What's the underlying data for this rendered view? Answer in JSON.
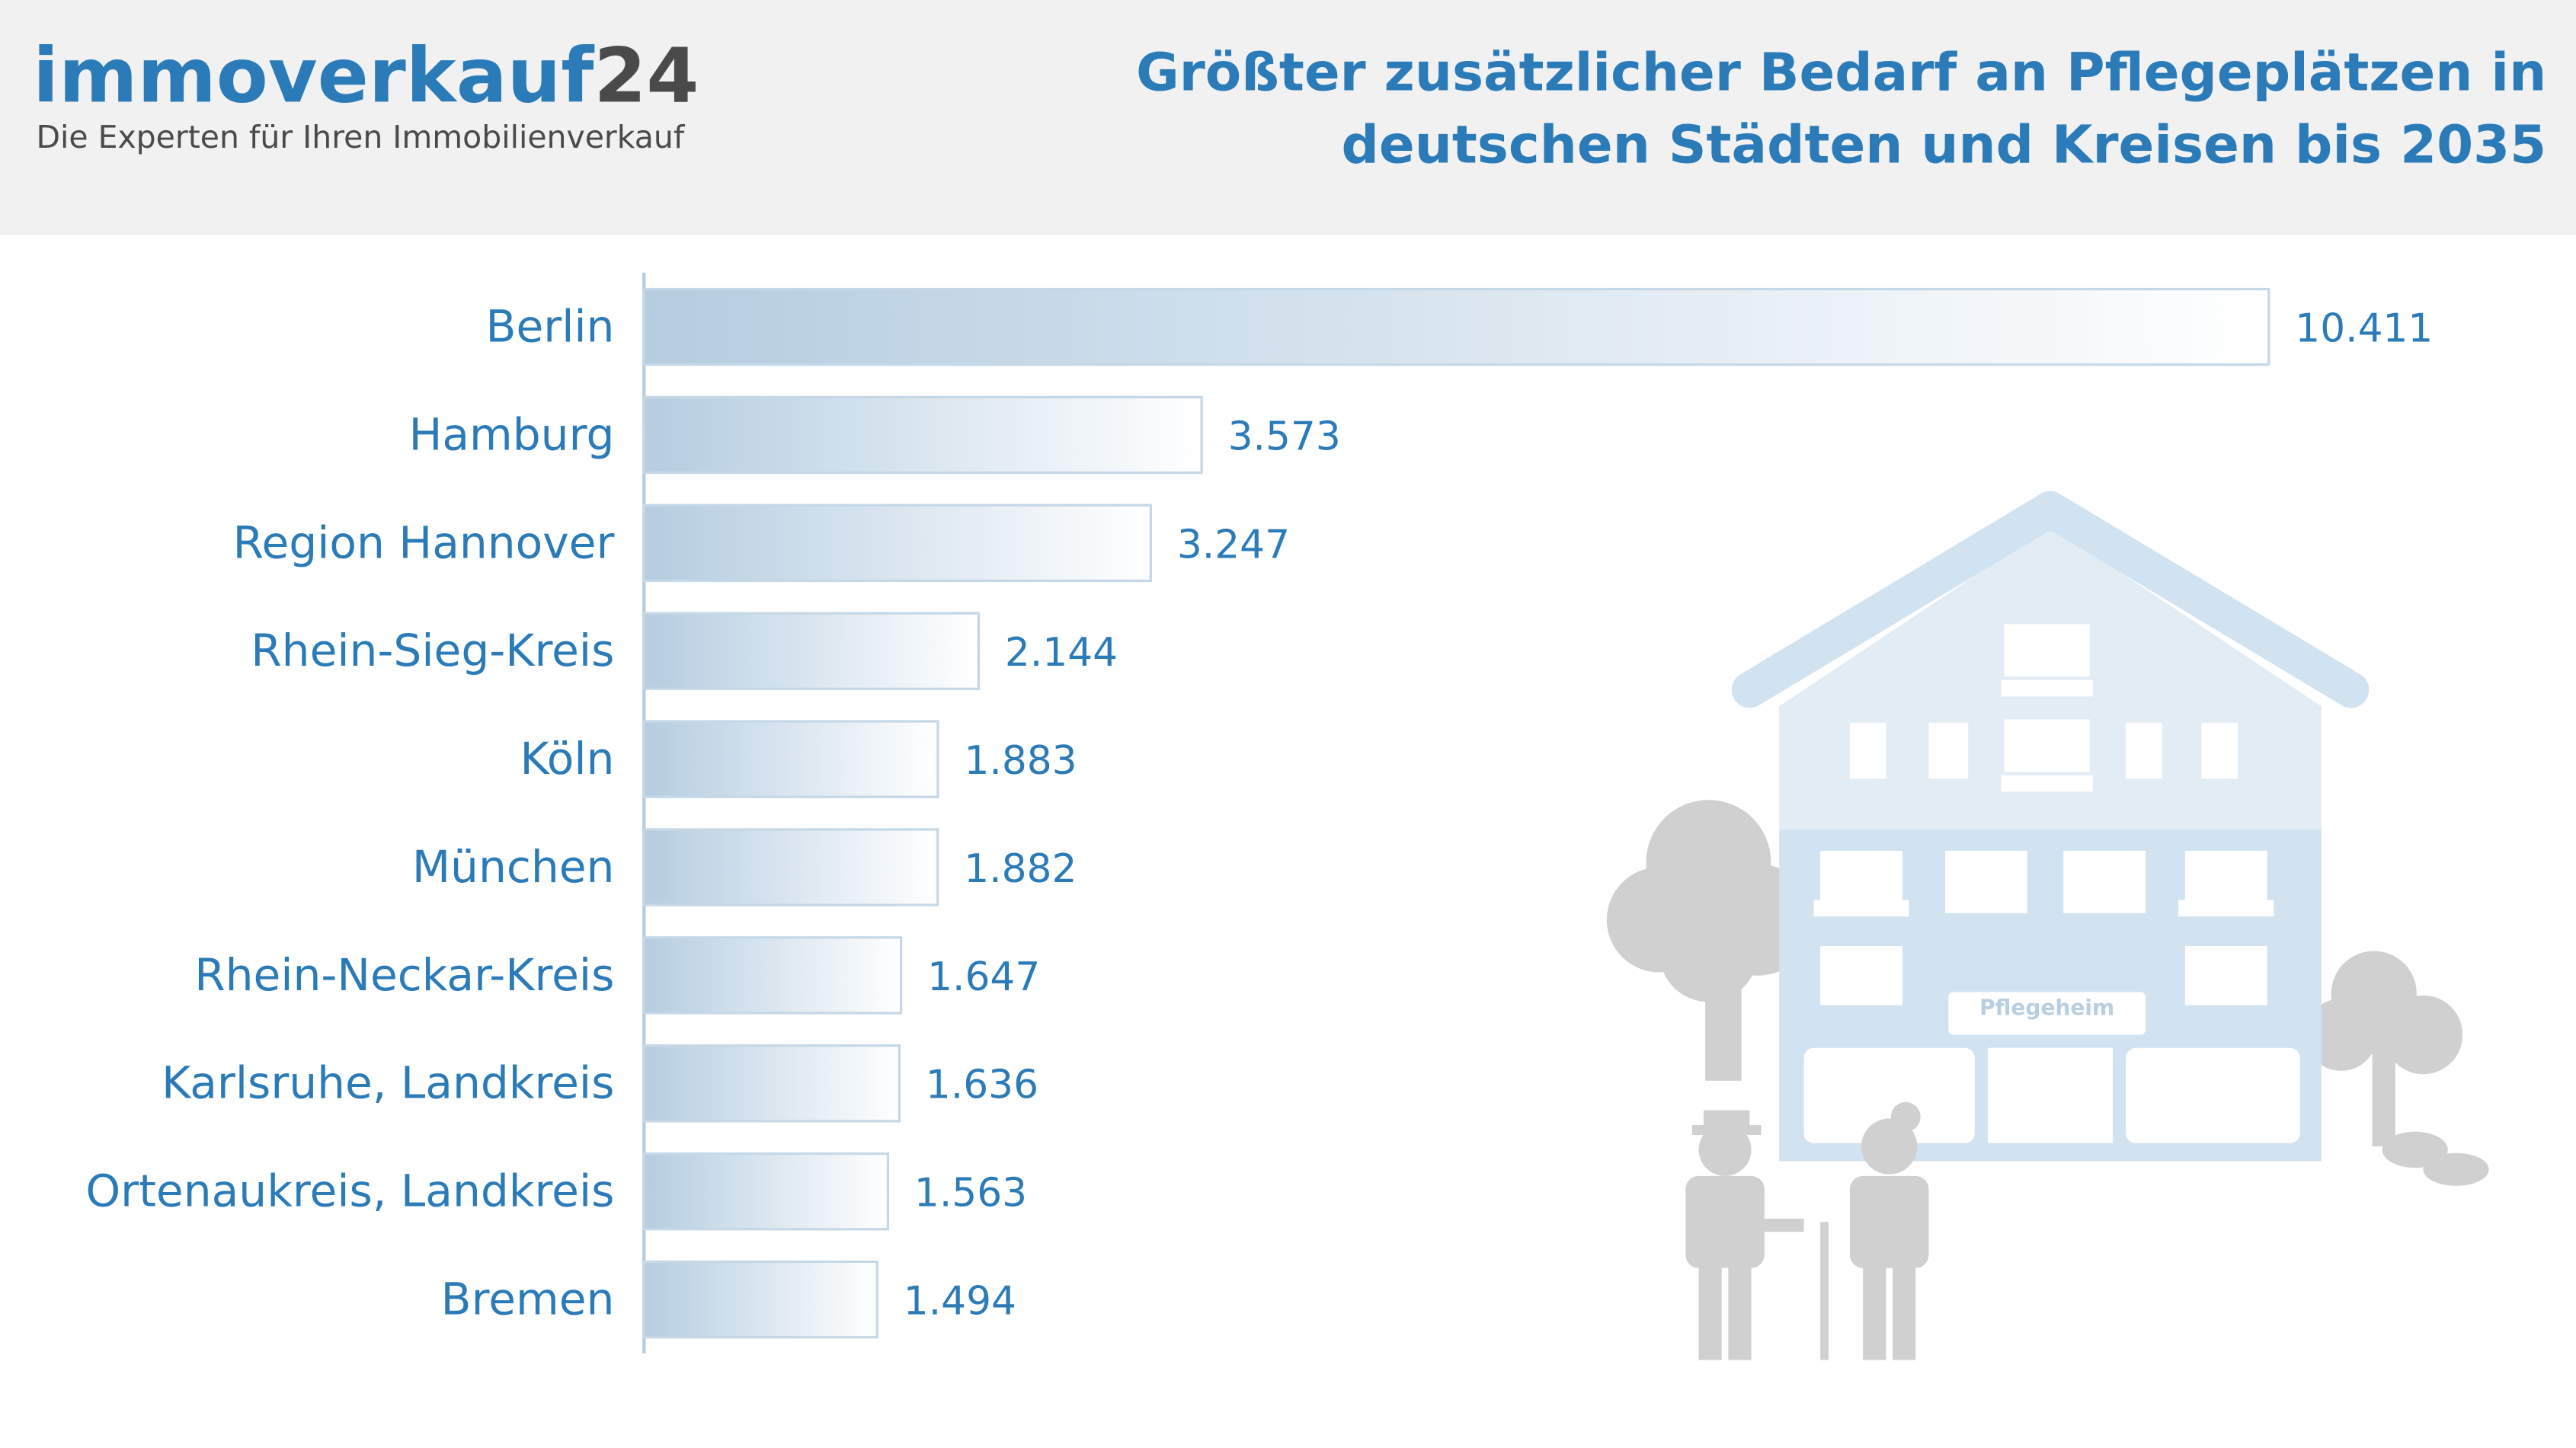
{
  "logo": {
    "brand": "immoverkauf",
    "brand_number": "24",
    "tagline": "Die Experten für Ihren Immobilienverkauf"
  },
  "illustration_label": "Pflegeheim",
  "chart_data": {
    "type": "bar",
    "orientation": "horizontal",
    "title": "Größter zusätzlicher Bedarf an Pflegeplätzen in deutschen Städten und Kreisen bis 2035",
    "categories": [
      "Berlin",
      "Hamburg",
      "Region Hannover",
      "Rhein-Sieg-Kreis",
      "Köln",
      "München",
      "Rhein-Neckar-Kreis",
      "Karlsruhe, Landkreis",
      "Ortenaukreis, Landkreis",
      "Bremen"
    ],
    "values": [
      10411,
      3573,
      3247,
      2144,
      1883,
      1882,
      1647,
      1636,
      1563,
      1494
    ],
    "value_labels": [
      "10.411",
      "3.573",
      "3.247",
      "2.144",
      "1.883",
      "1.882",
      "1.647",
      "1.636",
      "1.563",
      "1.494"
    ],
    "color": "#b5cde0"
  }
}
